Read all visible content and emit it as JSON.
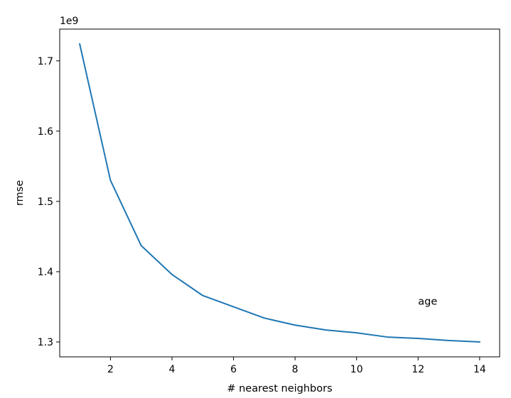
{
  "chart_data": {
    "type": "line",
    "title": "",
    "xlabel": "# nearest neighbors",
    "ylabel": "rmse",
    "y_offset_label": "1e9",
    "x": [
      1,
      2,
      3,
      4,
      5,
      6,
      7,
      8,
      9,
      10,
      11,
      12,
      13,
      14
    ],
    "series": [
      {
        "values": [
          1.724,
          1.53,
          1.437,
          1.396,
          1.366,
          1.35,
          1.334,
          1.324,
          1.317,
          1.313,
          1.307,
          1.305,
          1.302,
          1.3
        ],
        "color": "#1f77b4"
      }
    ],
    "xlim": [
      0.35,
      14.65
    ],
    "ylim": [
      1.2788,
      1.7452
    ],
    "xticks": [
      2,
      4,
      6,
      8,
      10,
      12,
      14
    ],
    "xtick_labels": [
      "2",
      "4",
      "6",
      "8",
      "10",
      "12",
      "14"
    ],
    "yticks": [
      1.3,
      1.4,
      1.5,
      1.6,
      1.7
    ],
    "ytick_labels": [
      "1.3",
      "1.4",
      "1.5",
      "1.6",
      "1.7"
    ],
    "annotations": [
      {
        "text": "age",
        "x": 12.0,
        "y": 1.353
      }
    ],
    "grid": false,
    "legend": "none"
  }
}
